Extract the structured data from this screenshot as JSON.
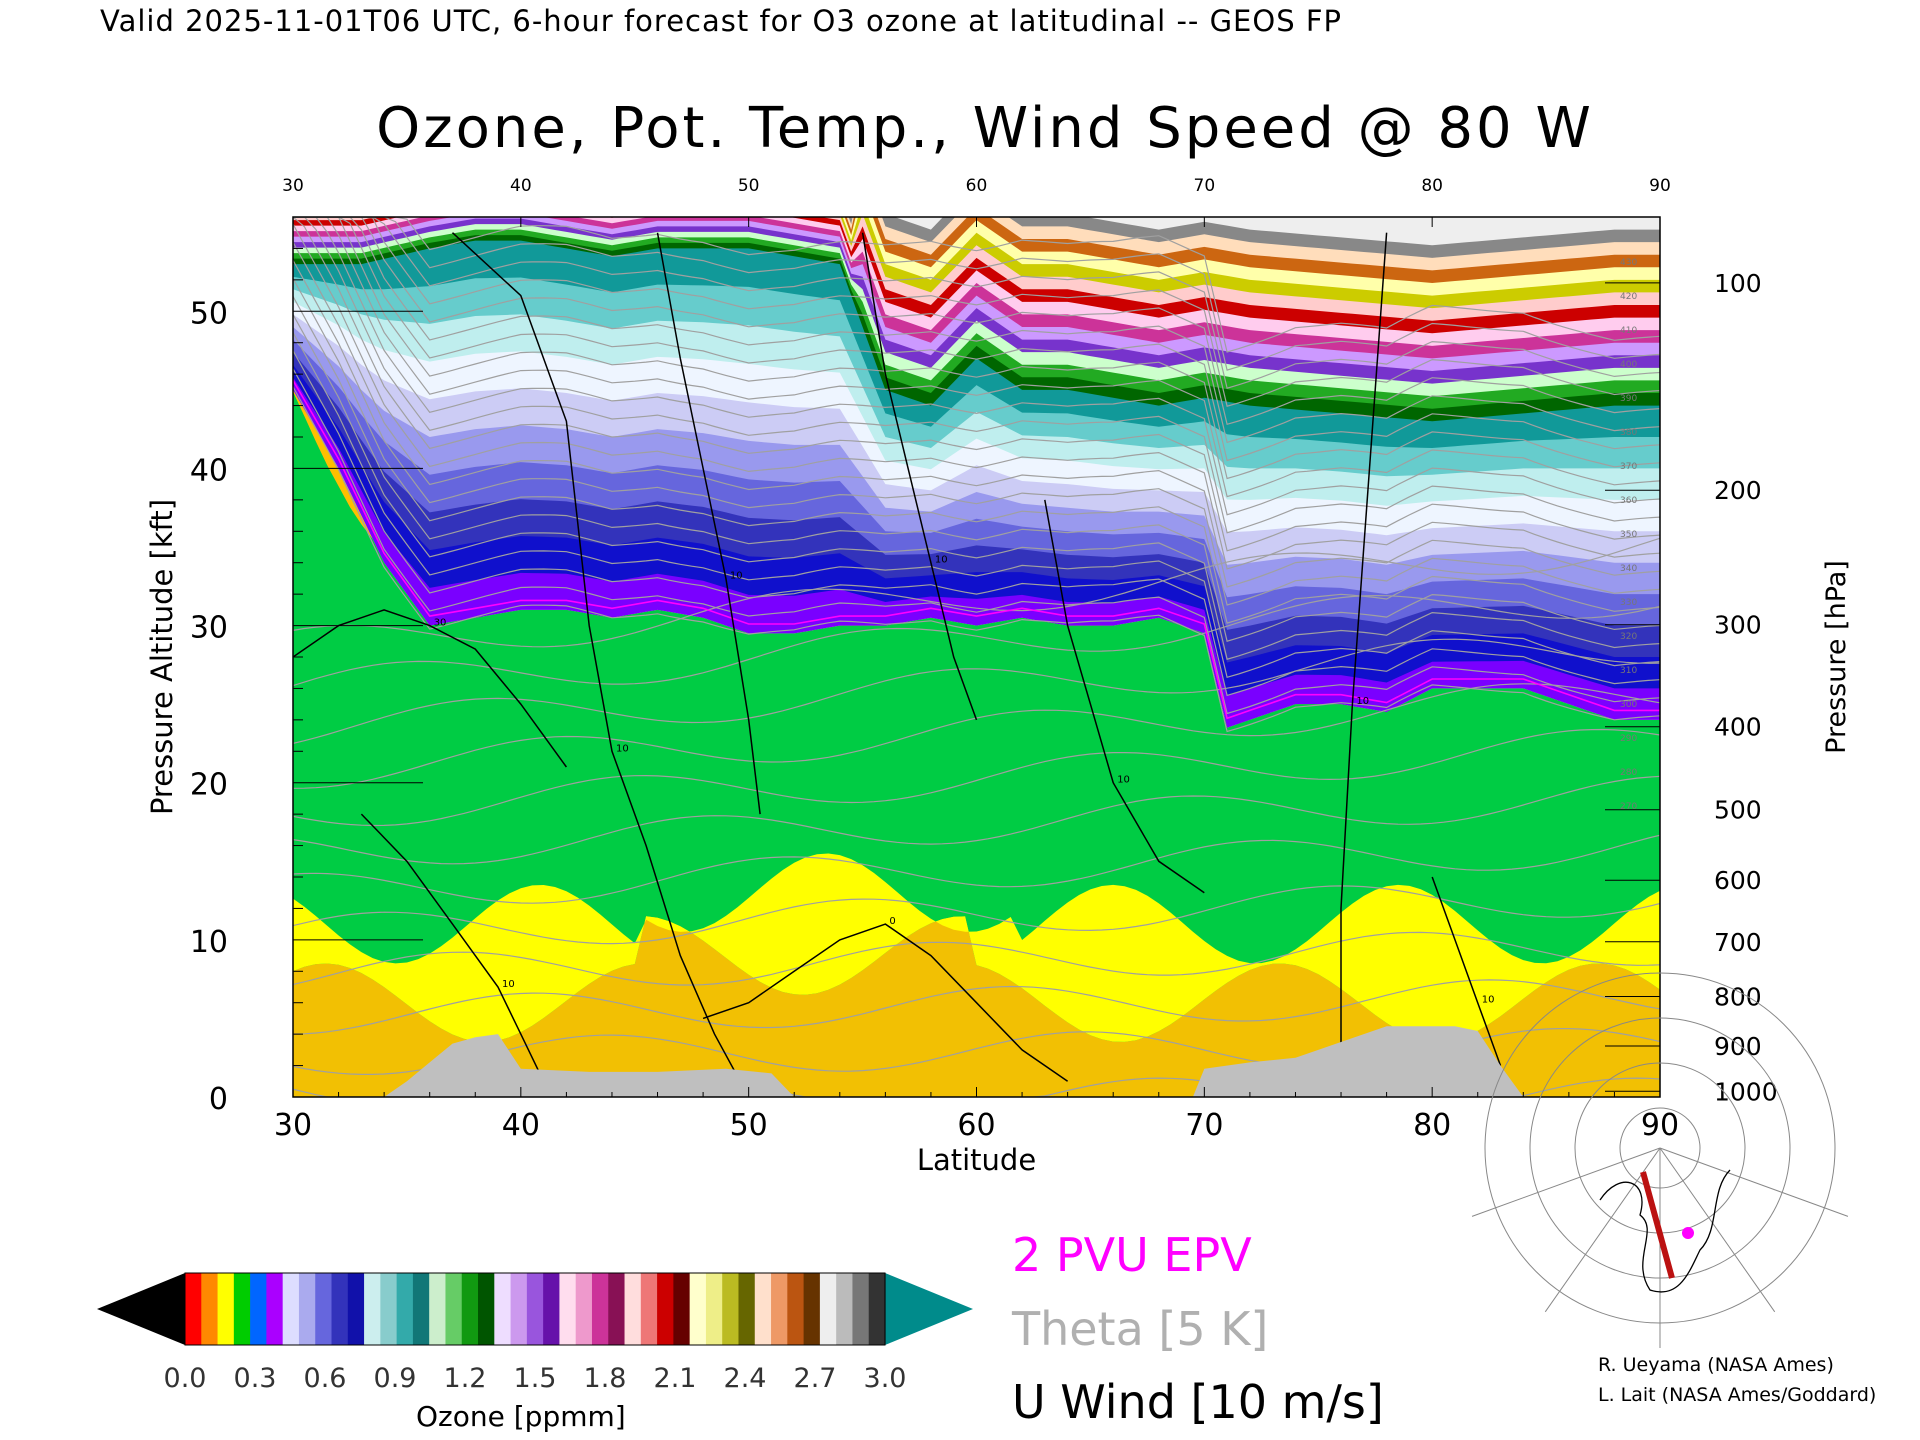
{
  "header": {
    "valid_line": "Valid 2025-11-01T06 UTC, 6-hour forecast for O3 ozone at latitudinal -- GEOS FP"
  },
  "chart_data": {
    "type": "heatmap",
    "title": "Ozone, Pot. Temp., Wind Speed @ 80 W",
    "xlabel": "Latitude",
    "ylabel_left": "Pressure Altitude [kft]",
    "ylabel_right": "Pressure [hPa]",
    "xlim": [
      30,
      90
    ],
    "ylim": [
      0,
      56
    ],
    "x_ticks": [
      30,
      40,
      50,
      60,
      70,
      80,
      90
    ],
    "x_tick_labels": [
      "30",
      "40",
      "50",
      "60",
      "70",
      "80",
      "90"
    ],
    "y_ticks": [
      0,
      10,
      20,
      30,
      40,
      50
    ],
    "y_tick_labels": [
      "0",
      "10",
      "20",
      "30",
      "40",
      "50"
    ],
    "pressure_ticks": [
      {
        "hpa": 100,
        "label": "100"
      },
      {
        "hpa": 200,
        "label": "200"
      },
      {
        "hpa": 300,
        "label": "300"
      },
      {
        "hpa": 400,
        "label": "400"
      },
      {
        "hpa": 500,
        "label": "500"
      },
      {
        "hpa": 600,
        "label": "600"
      },
      {
        "hpa": 700,
        "label": "700"
      },
      {
        "hpa": 800,
        "label": "800"
      },
      {
        "hpa": 900,
        "label": "900"
      },
      {
        "hpa": 1000,
        "label": "1000"
      }
    ],
    "tropopause_kft": [
      [
        30,
        45
      ],
      [
        32,
        40
      ],
      [
        34,
        34
      ],
      [
        36,
        30
      ],
      [
        38,
        30.5
      ],
      [
        40,
        31
      ],
      [
        42,
        31
      ],
      [
        44,
        30.5
      ],
      [
        46,
        31
      ],
      [
        48,
        30.5
      ],
      [
        50,
        29.5
      ],
      [
        52,
        29.5
      ],
      [
        54,
        30
      ],
      [
        56,
        30
      ],
      [
        58,
        30.5
      ],
      [
        60,
        30
      ],
      [
        62,
        30.5
      ],
      [
        64,
        30
      ],
      [
        66,
        30
      ],
      [
        68,
        30.5
      ],
      [
        70,
        29.5
      ],
      [
        71,
        23.5
      ],
      [
        72,
        24
      ],
      [
        74,
        25
      ],
      [
        76,
        25
      ],
      [
        78,
        24.5
      ],
      [
        80,
        26
      ],
      [
        82,
        26
      ],
      [
        84,
        26
      ],
      [
        86,
        25
      ],
      [
        88,
        24
      ],
      [
        90,
        24
      ]
    ],
    "stratosphere_top_kft": [
      [
        30,
        53
      ],
      [
        33,
        53
      ],
      [
        36,
        54
      ],
      [
        38,
        54.5
      ],
      [
        40,
        54.5
      ],
      [
        42,
        54
      ],
      [
        44,
        53.5
      ],
      [
        46,
        54
      ],
      [
        48,
        54
      ],
      [
        50,
        54
      ],
      [
        52,
        53.5
      ],
      [
        54,
        53
      ],
      [
        55,
        49
      ],
      [
        56,
        45
      ],
      [
        58,
        44
      ],
      [
        60,
        47
      ],
      [
        62,
        45
      ],
      [
        64,
        45
      ],
      [
        66,
        44.5
      ],
      [
        68,
        44
      ],
      [
        70,
        44.5
      ],
      [
        72,
        44
      ],
      [
        76,
        43.5
      ],
      [
        80,
        43
      ],
      [
        84,
        43.5
      ],
      [
        88,
        44
      ],
      [
        90,
        44
      ]
    ],
    "wind_contours": [
      {
        "label": "10",
        "points": [
          [
            37,
            55
          ],
          [
            40,
            51
          ],
          [
            42,
            43
          ],
          [
            43,
            30
          ],
          [
            44,
            22
          ],
          [
            45.5,
            16
          ],
          [
            47,
            9
          ],
          [
            48.5,
            4
          ],
          [
            50,
            0
          ]
        ]
      },
      {
        "label": "10",
        "points": [
          [
            46,
            55
          ],
          [
            47,
            47
          ],
          [
            48,
            40
          ],
          [
            49,
            33
          ],
          [
            50,
            24
          ],
          [
            50.5,
            18
          ]
        ]
      },
      {
        "label": "10",
        "points": [
          [
            55,
            55
          ],
          [
            56,
            46
          ],
          [
            57,
            40
          ],
          [
            58,
            34
          ],
          [
            59,
            28
          ],
          [
            60,
            24
          ]
        ]
      },
      {
        "label": "10",
        "points": [
          [
            63,
            38
          ],
          [
            64,
            30
          ],
          [
            65,
            25
          ],
          [
            66,
            20
          ],
          [
            68,
            15
          ],
          [
            70,
            13
          ]
        ]
      },
      {
        "label": "10",
        "points": [
          [
            78,
            55
          ],
          [
            77.5,
            45
          ],
          [
            77,
            35
          ],
          [
            76.5,
            25
          ],
          [
            76,
            12
          ],
          [
            76,
            0
          ]
        ]
      },
      {
        "label": "30",
        "points": [
          [
            30,
            28
          ],
          [
            32,
            30
          ],
          [
            34,
            31
          ],
          [
            36,
            30
          ],
          [
            38,
            28.5
          ],
          [
            40,
            25
          ],
          [
            42,
            21
          ]
        ]
      },
      {
        "label": "0",
        "points": [
          [
            48,
            5
          ],
          [
            50,
            6
          ],
          [
            52,
            8
          ],
          [
            54,
            10
          ],
          [
            56,
            11
          ],
          [
            58,
            9
          ],
          [
            60,
            6
          ],
          [
            62,
            3
          ],
          [
            64,
            1
          ]
        ]
      },
      {
        "label": "10",
        "points": [
          [
            33,
            18
          ],
          [
            35,
            15
          ],
          [
            37,
            11
          ],
          [
            39,
            7
          ],
          [
            40,
            4
          ],
          [
            41,
            1
          ]
        ]
      },
      {
        "label": "10",
        "points": [
          [
            80,
            14
          ],
          [
            81,
            10
          ],
          [
            82,
            6
          ],
          [
            83,
            2
          ]
        ]
      }
    ],
    "terrain_kft": [
      [
        30,
        0
      ],
      [
        34,
        0
      ],
      [
        35,
        1
      ],
      [
        36,
        2.2
      ],
      [
        37,
        3.4
      ],
      [
        38,
        3.8
      ],
      [
        39,
        4
      ],
      [
        40,
        1.8
      ],
      [
        43,
        1.6
      ],
      [
        46,
        1.6
      ],
      [
        49,
        1.8
      ],
      [
        51,
        1.5
      ],
      [
        52,
        0
      ],
      [
        69.5,
        0
      ],
      [
        70,
        1.8
      ],
      [
        72,
        2.2
      ],
      [
        74,
        2.5
      ],
      [
        76,
        3.5
      ],
      [
        77,
        4
      ],
      [
        78,
        4.5
      ],
      [
        80,
        4.5
      ],
      [
        81,
        4.5
      ],
      [
        82,
        4.2
      ],
      [
        83,
        2
      ],
      [
        84,
        0
      ],
      [
        90,
        0
      ]
    ],
    "theta_ticks_labels": [
      "430",
      "420",
      "410",
      "400",
      "390",
      "380",
      "370",
      "360",
      "350",
      "340",
      "330",
      "320",
      "310",
      "300",
      "290",
      "280",
      "270"
    ],
    "colorbar": {
      "label": "Ozone [ppmm]",
      "ticks": [
        "0.0",
        "0.3",
        "0.6",
        "0.9",
        "1.2",
        "1.5",
        "1.8",
        "2.1",
        "2.4",
        "2.7",
        "3.0"
      ],
      "colors": [
        "#ff0000",
        "#ff8800",
        "#ffff00",
        "#00cc00",
        "#0066ff",
        "#aa00ff",
        "#ddddff",
        "#aaaaee",
        "#6666dd",
        "#3333bb",
        "#1111aa",
        "#cceeee",
        "#88cccc",
        "#33aaaa",
        "#117777",
        "#cceecc",
        "#66cc66",
        "#119911",
        "#005500",
        "#eeddff",
        "#cc99ee",
        "#9955dd",
        "#6611aa",
        "#ffddee",
        "#ee99cc",
        "#cc3399",
        "#881155",
        "#ffdddd",
        "#ee7777",
        "#cc0000",
        "#660000",
        "#ffffcc",
        "#eeee88",
        "#bbbb22",
        "#666600",
        "#ffe0cc",
        "#ee9966",
        "#bb5511",
        "#663300",
        "#eeeeee",
        "#bbbbbb",
        "#777777",
        "#333333"
      ],
      "under_color": "#000000",
      "over_color": "#008b8b"
    }
  },
  "legend": {
    "epv": "2 PVU EPV",
    "theta": "Theta [5 K]",
    "wind": "U Wind [10 m/s]",
    "epv_color": "#ff00ff",
    "theta_color": "#b0b0b0",
    "wind_color": "#000000"
  },
  "credits": {
    "line1": "R. Ueyama (NASA Ames)",
    "line2": "L. Lait (NASA Ames/Goddard)"
  }
}
